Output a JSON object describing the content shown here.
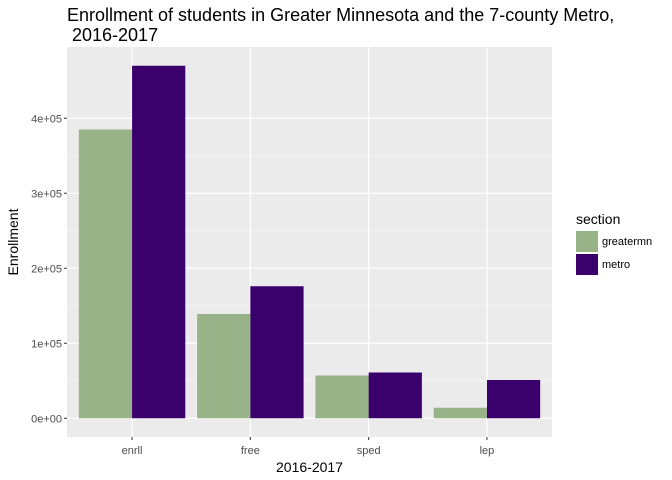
{
  "chart_data": {
    "type": "bar",
    "title_lines": [
      "Enrollment of students in Greater Minnesota and the 7-county Metro,",
      " 2016-2017"
    ],
    "xlabel": "2016-2017",
    "ylabel": "Enrollment",
    "categories": [
      "enrll",
      "free",
      "sped",
      "lep"
    ],
    "series": [
      {
        "name": "greatermn",
        "color": "#99b388",
        "values": [
          385000,
          139000,
          57000,
          14000
        ]
      },
      {
        "name": "metro",
        "color": "#3a006c",
        "values": [
          470000,
          176000,
          61000,
          51000
        ]
      }
    ],
    "ylim": [
      -25000,
      495000
    ],
    "yticks": [
      0,
      100000,
      200000,
      300000,
      400000
    ],
    "ytick_labels": [
      "0e+00",
      "1e+05",
      "2e+05",
      "3e+05",
      "4e+05"
    ],
    "legend": {
      "title": "section",
      "placement": "right"
    },
    "panel_background": "#ebebeb",
    "grid": true
  }
}
